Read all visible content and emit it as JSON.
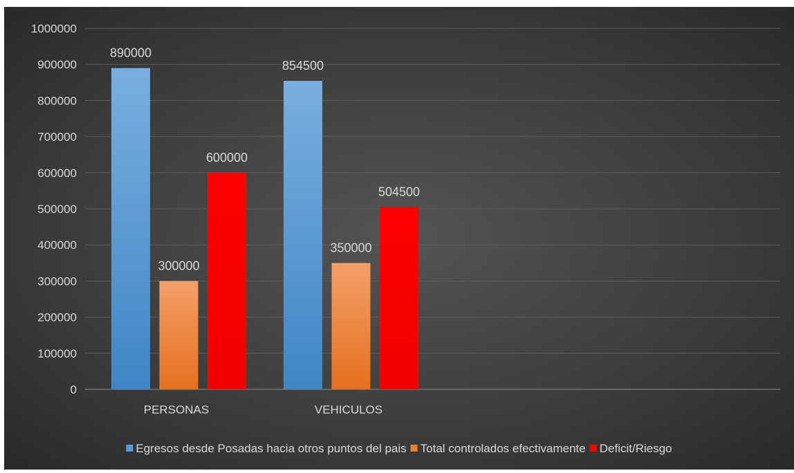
{
  "chart_data": {
    "type": "bar",
    "title": "",
    "xlabel": "",
    "ylabel": "",
    "categories": [
      "PERSONAS",
      "VEHICULOS"
    ],
    "series": [
      {
        "name": "Egresos desde Posadas hacia otros puntos del pais",
        "values": [
          890000,
          854500
        ],
        "color": "#5b9bd5"
      },
      {
        "name": "Total controlados efectivamente",
        "values": [
          300000,
          350000
        ],
        "color": "#ed7d31"
      },
      {
        "name": "Deficit/Riesgo",
        "values": [
          600000,
          504500
        ],
        "color": "#ff0000"
      }
    ],
    "ylim": [
      0,
      1000000
    ],
    "yticks": [
      "0",
      "100000",
      "200000",
      "300000",
      "400000",
      "500000",
      "600000",
      "700000",
      "800000",
      "900000",
      "1000000"
    ],
    "data_labels": [
      [
        "890000",
        "854500"
      ],
      [
        "300000",
        "350000"
      ],
      [
        "600000",
        "504500"
      ]
    ],
    "grid": true,
    "legend_position": "bottom",
    "background": "dark-radial"
  }
}
